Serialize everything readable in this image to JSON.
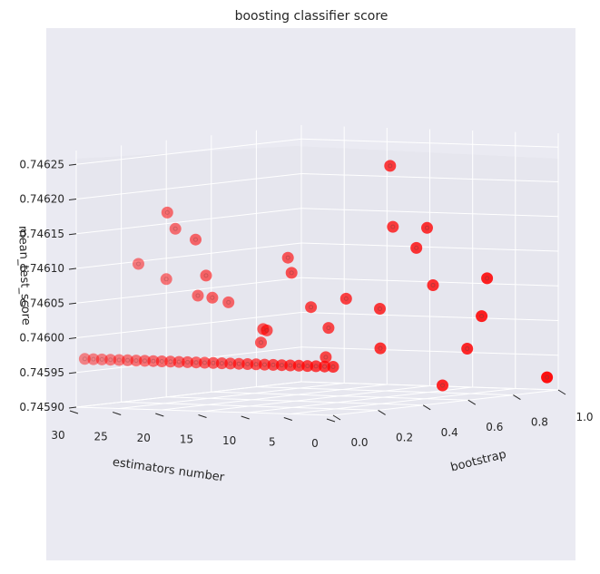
{
  "chart_data": {
    "type": "scatter",
    "dimensions": "3d",
    "title": "boosting classifier score",
    "xlabel": "estimators number",
    "ylabel": "bootstrap",
    "zlabel": "mean_test_score",
    "xlim": [
      0,
      30
    ],
    "ylim": [
      0.0,
      1.0
    ],
    "zlim": [
      0.7459,
      0.74627
    ],
    "x_ticks": [
      "30",
      "25",
      "20",
      "15",
      "10",
      "5",
      "0"
    ],
    "y_ticks": [
      "0.0",
      "0.2",
      "0.4",
      "0.6",
      "0.8",
      "1.0"
    ],
    "z_ticks": [
      "0.74590",
      "0.74595",
      "0.74600",
      "0.74605",
      "0.74610",
      "0.74615",
      "0.74620",
      "0.74625"
    ],
    "grid": true,
    "colors": {
      "background": "#eaeaf2",
      "pane": "#e6e6ee",
      "grid": "#ffffff",
      "marker": "#ff0000"
    },
    "marker": "o",
    "series": [
      {
        "x": [
          29.0,
          28.0,
          27.0,
          26.0,
          25.0,
          24.0,
          23.0,
          22.0,
          21.0,
          20.0,
          19.0,
          18.0,
          17.0,
          16.0,
          15.0,
          14.0,
          13.0,
          12.0,
          11.0,
          10.0,
          9.0,
          8.0,
          7.0,
          6.0,
          5.0,
          4.0,
          3.0,
          2.0,
          1.0,
          0.0
        ],
        "y": [
          0.0,
          0.0,
          0.0,
          0.0,
          0.0,
          0.0,
          0.0,
          0.0,
          0.0,
          0.0,
          0.0,
          0.0,
          0.0,
          0.0,
          0.0,
          0.0,
          0.0,
          0.0,
          0.0,
          0.0,
          0.0,
          0.0,
          0.0,
          0.0,
          0.0,
          0.0,
          0.0,
          0.0,
          0.0,
          0.0
        ],
        "z": [
          0.74597,
          0.74597,
          0.74597,
          0.74597,
          0.74597,
          0.74597,
          0.74597,
          0.74597,
          0.74597,
          0.74597,
          0.74597,
          0.74597,
          0.74597,
          0.74597,
          0.74597,
          0.74597,
          0.74597,
          0.74597,
          0.74597,
          0.74597,
          0.74597,
          0.74597,
          0.74597,
          0.74597,
          0.74597,
          0.74597,
          0.74597,
          0.74597,
          0.74597,
          0.74597
        ]
      },
      {
        "x": [
          28.0,
          22.0,
          25.0,
          20.0,
          18.0,
          22.0,
          30.0,
          25.0,
          13.0,
          15.0,
          28.0,
          20.0,
          11.0,
          18.0,
          9.0,
          25.0,
          14.0,
          15.0,
          5.0,
          9.0,
          17.0,
          10.0,
          18.0,
          3.0,
          8.0,
          12.0,
          14.0,
          5.0,
          7.0,
          0.0
        ],
        "y": [
          0.2,
          0.1,
          0.25,
          0.15,
          0.12,
          0.3,
          0.4,
          0.35,
          0.2,
          0.25,
          0.6,
          0.45,
          0.32,
          0.5,
          0.4,
          0.75,
          0.5,
          0.55,
          0.4,
          0.55,
          0.9,
          0.75,
          0.95,
          0.6,
          0.9,
          0.9,
          0.95,
          0.85,
          0.95,
          0.95
        ],
        "z": [
          0.7461,
          0.74618,
          0.74615,
          0.74614,
          0.74609,
          0.74605,
          0.74607,
          0.74605,
          0.74601,
          0.74599,
          0.74603,
          0.746,
          0.74604,
          0.74608,
          0.74605,
          0.74609,
          0.74596,
          0.746,
          0.74598,
          0.74603,
          0.74622,
          0.74611,
          0.74613,
          0.74592,
          0.74596,
          0.74605,
          0.74613,
          0.74601,
          0.74606,
          0.74592
        ]
      }
    ]
  }
}
